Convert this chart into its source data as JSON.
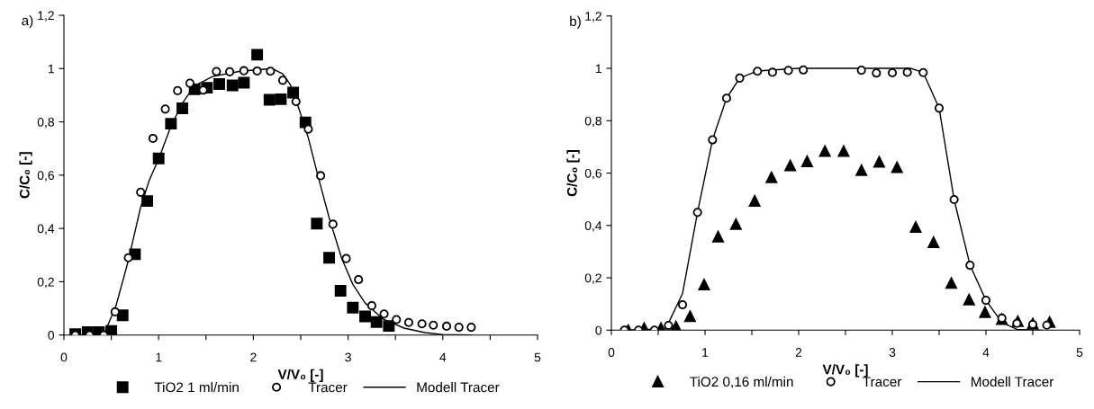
{
  "chart_data": [
    {
      "type": "scatter",
      "annotations": [
        "a)"
      ],
      "xlabel": "V/V₀ [-]",
      "ylabel": "C/C₀ [-]",
      "xlim": [
        0,
        5
      ],
      "ylim": [
        0,
        1.2
      ],
      "xticks": [
        0,
        {
          "value": 0.5,
          "label": null
        },
        1,
        {
          "value": 1.5,
          "label": null
        },
        2,
        {
          "value": 2.5,
          "label": null
        },
        3,
        {
          "value": 3.5,
          "label": null
        },
        4,
        {
          "value": 4.5,
          "label": null
        },
        5
      ],
      "yticks": [
        0,
        {
          "value": 0.2,
          "label": "0,2"
        },
        {
          "value": 0.4,
          "label": "0,4"
        },
        {
          "value": 0.6,
          "label": "0,6"
        },
        {
          "value": 0.8,
          "label": "0,8"
        },
        1,
        {
          "value": 1.2,
          "label": "1,2"
        }
      ],
      "grid": false,
      "legend": "bottom",
      "series": [
        {
          "name": "TiO2 1 ml/min",
          "marker": "square",
          "color": "#000000",
          "x": [
            0.12,
            0.25,
            0.37,
            0.5,
            0.62,
            0.75,
            0.88,
            1.0,
            1.13,
            1.25,
            1.38,
            1.51,
            1.64,
            1.78,
            1.9,
            2.04,
            2.17,
            2.29,
            2.42,
            2.55,
            2.67,
            2.8,
            2.92,
            3.05,
            3.18,
            3.3,
            3.43
          ],
          "values": [
            0.003,
            0.011,
            0.011,
            0.015,
            0.074,
            0.303,
            0.503,
            0.663,
            0.793,
            0.851,
            0.922,
            0.928,
            0.942,
            0.937,
            0.947,
            1.052,
            0.883,
            0.885,
            0.91,
            0.798,
            0.418,
            0.29,
            0.166,
            0.103,
            0.07,
            0.049,
            0.034
          ]
        },
        {
          "name": "Tracer",
          "marker": "circle",
          "color": "#ffffff",
          "x": [
            0.12,
            0.27,
            0.42,
            0.54,
            0.68,
            0.81,
            0.94,
            1.07,
            1.2,
            1.33,
            1.47,
            1.61,
            1.75,
            1.9,
            2.04,
            2.18,
            2.31,
            2.45,
            2.58,
            2.71,
            2.84,
            2.98,
            3.11,
            3.25,
            3.38,
            3.51,
            3.64,
            3.78,
            3.9,
            4.04,
            4.17,
            4.3
          ],
          "values": [
            0,
            0,
            0,
            0.087,
            0.29,
            0.536,
            0.738,
            0.848,
            0.917,
            0.945,
            0.919,
            0.989,
            0.988,
            0.992,
            0.991,
            0.99,
            0.956,
            0.876,
            0.773,
            0.598,
            0.416,
            0.287,
            0.208,
            0.11,
            0.079,
            0.058,
            0.047,
            0.042,
            0.037,
            0.033,
            0.029,
            0.029
          ]
        },
        {
          "name": "Modell Tracer",
          "type": "line",
          "marker": "none",
          "color": "#000000",
          "x": [
            0.1,
            0.42,
            0.55,
            0.68,
            0.81,
            0.9,
            1.0,
            1.13,
            1.25,
            1.38,
            1.57,
            1.86,
            2.2,
            2.31,
            2.39,
            2.48,
            2.58,
            2.68,
            2.8,
            2.93,
            3.05,
            3.18,
            3.37,
            3.59,
            3.81,
            4.0,
            4.3
          ],
          "values": [
            0,
            0,
            0.11,
            0.28,
            0.48,
            0.58,
            0.66,
            0.784,
            0.87,
            0.936,
            0.97,
            0.99,
            1.0,
            0.98,
            0.94,
            0.85,
            0.74,
            0.6,
            0.44,
            0.29,
            0.19,
            0.12,
            0.06,
            0.026,
            0.009,
            0.002,
            0
          ]
        }
      ]
    },
    {
      "type": "scatter",
      "annotations": [
        "b)"
      ],
      "xlabel": "V/V₀ [-]",
      "ylabel": "C/C₀ [-]",
      "xlim": [
        0,
        5
      ],
      "ylim": [
        0,
        1.2
      ],
      "xticks": [
        0,
        {
          "value": 0.5,
          "label": null
        },
        1,
        {
          "value": 1.5,
          "label": null
        },
        2,
        {
          "value": 2.5,
          "label": null
        },
        3,
        {
          "value": 3.5,
          "label": null
        },
        4,
        {
          "value": 4.5,
          "label": null
        },
        5
      ],
      "yticks": [
        0,
        {
          "value": 0.2,
          "label": "0,2"
        },
        {
          "value": 0.4,
          "label": "0,4"
        },
        {
          "value": 0.6,
          "label": "0,6"
        },
        {
          "value": 0.8,
          "label": "0,8"
        },
        1,
        {
          "value": 1.2,
          "label": "1,2"
        }
      ],
      "grid": false,
      "legend": "bottom",
      "series": [
        {
          "name": "TiO2 0,16 ml/min",
          "marker": "triangle",
          "color": "#000000",
          "x": [
            0.18,
            0.35,
            0.53,
            0.69,
            0.84,
            0.99,
            1.14,
            1.33,
            1.53,
            1.71,
            1.91,
            2.09,
            2.28,
            2.48,
            2.67,
            2.86,
            3.05,
            3.25,
            3.44,
            3.63,
            3.82,
            3.99,
            4.17,
            4.34,
            4.5,
            4.68
          ],
          "values": [
            0.0,
            0.008,
            0.008,
            0.014,
            0.053,
            0.174,
            0.357,
            0.405,
            0.494,
            0.584,
            0.629,
            0.645,
            0.684,
            0.684,
            0.611,
            0.643,
            0.622,
            0.394,
            0.336,
            0.18,
            0.117,
            0.069,
            0.042,
            0.034,
            0.025,
            0.031
          ]
        },
        {
          "name": "Tracer",
          "marker": "circle",
          "color": "#ffffff",
          "x": [
            0.14,
            0.29,
            0.46,
            0.61,
            0.76,
            0.92,
            1.08,
            1.23,
            1.37,
            1.56,
            1.72,
            1.89,
            2.05,
            2.67,
            2.83,
            3.0,
            3.16,
            3.33,
            3.5,
            3.66,
            3.83,
            4.0,
            4.17,
            4.33,
            4.5,
            4.65
          ],
          "values": [
            0,
            0,
            0,
            0.018,
            0.097,
            0.45,
            0.727,
            0.886,
            0.963,
            0.989,
            0.985,
            0.992,
            0.994,
            0.993,
            0.982,
            0.983,
            0.985,
            0.984,
            0.848,
            0.499,
            0.248,
            0.114,
            0.046,
            0.026,
            0.022,
            0.019
          ]
        },
        {
          "name": "Modell Tracer",
          "type": "line",
          "marker": "none",
          "color": "#000000",
          "x": [
            0.14,
            0.58,
            0.76,
            0.92,
            1.08,
            1.23,
            1.37,
            1.56,
            2.0,
            3.2,
            3.33,
            3.5,
            3.66,
            3.83,
            4.0,
            4.17,
            4.33,
            4.6
          ],
          "values": [
            0,
            0.005,
            0.14,
            0.45,
            0.727,
            0.886,
            0.963,
            0.99,
            1.0,
            1.0,
            0.984,
            0.848,
            0.499,
            0.248,
            0.114,
            0.03,
            0.003,
            0
          ]
        }
      ]
    }
  ]
}
